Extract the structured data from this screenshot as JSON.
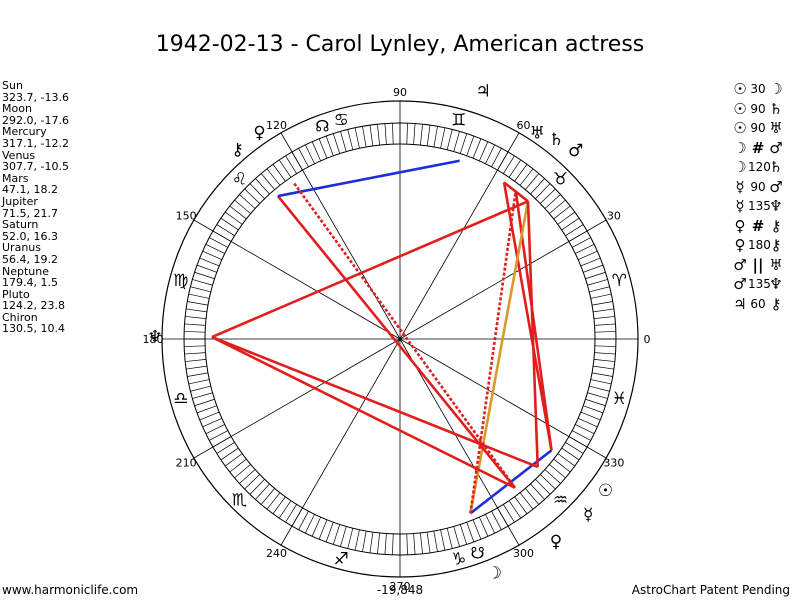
{
  "title": "1942-02-13 - Carol Lynley, American actress",
  "planets": [
    {
      "name": "Sun",
      "coords": "323.7, -13.6",
      "glyph": "☉",
      "lon": 323.7
    },
    {
      "name": "Moon",
      "coords": "292.0, -17.6",
      "glyph": "☽",
      "lon": 292.0
    },
    {
      "name": "Mercury",
      "coords": "317.1, -12.2",
      "glyph": "☿",
      "lon": 317.1
    },
    {
      "name": "Venus",
      "coords": "307.7, -10.5",
      "glyph": "♀",
      "lon": 307.7
    },
    {
      "name": "Mars",
      "coords": "47.1, 18.2",
      "glyph": "♂",
      "lon": 47.1
    },
    {
      "name": "Jupiter",
      "coords": "71.5, 21.7",
      "glyph": "♃",
      "lon": 71.5
    },
    {
      "name": "Saturn",
      "coords": "52.0, 16.3",
      "glyph": "♄",
      "lon": 52.0
    },
    {
      "name": "Uranus",
      "coords": "56.4, 19.2",
      "glyph": "♅",
      "lon": 56.4
    },
    {
      "name": "Neptune",
      "coords": "179.4, 1.5",
      "glyph": "♆",
      "lon": 179.4
    },
    {
      "name": "Pluto",
      "coords": "124.2, 23.8",
      "glyph": "♀",
      "lon": 124.2
    },
    {
      "name": "Chiron",
      "coords": "130.5, 10.4",
      "glyph": "⚷",
      "lon": 130.5
    }
  ],
  "aspects": [
    {
      "p1": "☉",
      "angle": "30",
      "p2": "☽"
    },
    {
      "p1": "☉",
      "angle": "90",
      "p2": "♄"
    },
    {
      "p1": "☉",
      "angle": "90",
      "p2": "♅"
    },
    {
      "p1": "☽",
      "angle": "",
      "sym": "#",
      "p2": "♂"
    },
    {
      "p1": "☽",
      "angle": "120",
      "p2": "♄"
    },
    {
      "p1": "☿",
      "angle": "90",
      "p2": "♂"
    },
    {
      "p1": "☿",
      "angle": "135",
      "p2": "♆"
    },
    {
      "p1": "♀",
      "angle": "",
      "sym": "#",
      "p2": "⚷"
    },
    {
      "p1": "♀",
      "angle": "180",
      "p2": "⚷"
    },
    {
      "p1": "♂",
      "angle": "",
      "sym": "||",
      "p2": "♅"
    },
    {
      "p1": "♂",
      "angle": "135",
      "p2": "♆"
    },
    {
      "p1": "♃",
      "angle": "60",
      "p2": "⚷"
    }
  ],
  "degree_labels": [
    "0",
    "30",
    "60",
    "90",
    "120",
    "150",
    "180",
    "210",
    "240",
    "270",
    "300",
    "330"
  ],
  "degree_values": [
    0,
    30,
    60,
    90,
    120,
    150,
    180,
    210,
    240,
    270,
    300,
    330
  ],
  "zodiac": [
    {
      "glyph": "♈",
      "lon": 15
    },
    {
      "glyph": "♉",
      "lon": 45
    },
    {
      "glyph": "♊",
      "lon": 75
    },
    {
      "glyph": "♋",
      "lon": 105
    },
    {
      "glyph": "♌",
      "lon": 135
    },
    {
      "glyph": "♍",
      "lon": 165
    },
    {
      "glyph": "♎",
      "lon": 195
    },
    {
      "glyph": "♏",
      "lon": 225
    },
    {
      "glyph": "♐",
      "lon": 255
    },
    {
      "glyph": "♑",
      "lon": 285
    },
    {
      "glyph": "♒",
      "lon": 315
    },
    {
      "glyph": "♓",
      "lon": 345
    }
  ],
  "node_glyphs": [
    {
      "glyph": "☊",
      "lon": 110
    },
    {
      "glyph": "☋",
      "lon": 290
    }
  ],
  "colors": {
    "red": "#e11d1d",
    "blue": "#1f2fd6",
    "orange": "#d89a2a"
  },
  "footer": {
    "left": "www.harmoniclife.com",
    "center": "-19,848",
    "right": "AstroChart Patent Pending"
  }
}
